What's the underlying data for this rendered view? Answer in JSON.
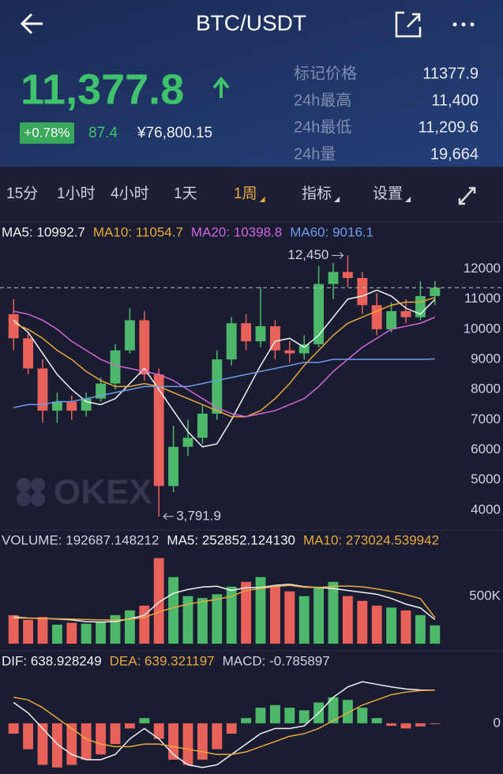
{
  "header": {
    "title": "BTC/USDT",
    "price": "11,377.8",
    "change": "+0.78%",
    "change_abs": "87.4",
    "price_cny": "¥76,800.15",
    "stats": [
      {
        "label": "标记价格",
        "value": "11377.9"
      },
      {
        "label": "24h最高",
        "value": "11,400"
      },
      {
        "label": "24h最低",
        "value": "11,209.6"
      },
      {
        "label": "24h量",
        "value": "19,664"
      }
    ]
  },
  "tabs": [
    "15分",
    "1小时",
    "4小时",
    "1天",
    "1周",
    "指标",
    "设置"
  ],
  "watermark": "OKEX",
  "chart_data": [
    {
      "type": "candlestick",
      "up_color": "#4cb86a",
      "down_color": "#e8615b",
      "open": [
        10500,
        9700,
        8700,
        7300,
        7600,
        7300,
        7700,
        8200,
        9300,
        10300,
        8500,
        4800,
        6100,
        6400,
        7200,
        9000,
        10200,
        9600,
        10100,
        9300,
        9200,
        9500,
        11500,
        11900,
        11700,
        10800,
        10000,
        10600,
        10400,
        11100
      ],
      "high": [
        11000,
        9900,
        9000,
        7900,
        7800,
        7900,
        8400,
        9500,
        10700,
        10600,
        8700,
        6800,
        7000,
        7500,
        9300,
        10400,
        10500,
        11400,
        10300,
        9600,
        9800,
        12100,
        12200,
        12450,
        11900,
        11200,
        10900,
        11000,
        11600,
        11600
      ],
      "low": [
        9300,
        8500,
        6900,
        6900,
        7000,
        7100,
        7600,
        8000,
        9200,
        8300,
        3791.9,
        4600,
        5800,
        6200,
        7000,
        8800,
        9300,
        9400,
        9000,
        8900,
        9000,
        9400,
        11000,
        11400,
        10500,
        9800,
        9900,
        10200,
        10300,
        10800
      ],
      "close": [
        9700,
        8700,
        7300,
        7600,
        7300,
        7700,
        8200,
        9300,
        10300,
        8500,
        4800,
        6100,
        6400,
        7200,
        9000,
        10200,
        9600,
        10100,
        9300,
        9200,
        9500,
        11500,
        11900,
        11700,
        10800,
        10000,
        10600,
        10400,
        11100,
        11377.8
      ],
      "series": [
        {
          "name": "MA5: 10992.7",
          "color": "#f2f2f2",
          "values": [
            10300,
            9900,
            9200,
            8500,
            8000,
            7600,
            7500,
            7700,
            8200,
            8700,
            8000,
            7300,
            6600,
            6100,
            6200,
            7000,
            7900,
            8800,
            9600,
            9700,
            9400,
            9800,
            10400,
            11000,
            11100,
            11300,
            11100,
            10700,
            10500,
            10992.7
          ]
        },
        {
          "name": "MA10: 11054.7",
          "color": "#e9a83a",
          "values": [
            10200,
            10000,
            9700,
            9300,
            9000,
            8600,
            8300,
            8100,
            8100,
            8200,
            8100,
            7900,
            7700,
            7500,
            7300,
            7100,
            7100,
            7300,
            7700,
            8200,
            8800,
            9300,
            9800,
            10200,
            10400,
            10600,
            10800,
            10900,
            10900,
            11054.7
          ]
        },
        {
          "name": "MA20: 10398.8",
          "color": "#d066d8",
          "values": [
            10600,
            10500,
            10300,
            10000,
            9600,
            9300,
            9000,
            8800,
            8700,
            8600,
            8500,
            8300,
            8000,
            7700,
            7400,
            7200,
            7100,
            7200,
            7300,
            7500,
            7700,
            8100,
            8600,
            9000,
            9400,
            9700,
            10000,
            10100,
            10200,
            10398.8
          ]
        },
        {
          "name": "MA60: 9016.1",
          "color": "#6f9ce8",
          "values": [
            7400,
            7500,
            7500,
            7600,
            7600,
            7700,
            7800,
            7900,
            8000,
            8100,
            8100,
            8100,
            8100,
            8200,
            8300,
            8400,
            8500,
            8600,
            8700,
            8800,
            8900,
            8900,
            9000,
            9000,
            9000,
            9000,
            9000,
            9000,
            9000,
            9016.1
          ]
        }
      ],
      "annotations": [
        {
          "value": 12450,
          "label": "12,450"
        },
        {
          "value": 3791.9,
          "label": "3,791.9"
        }
      ],
      "ylim": [
        3500,
        12800
      ],
      "yticks": [
        4000,
        5000,
        6000,
        7000,
        8000,
        9000,
        10000,
        11000,
        12000
      ]
    },
    {
      "type": "volume",
      "series": [
        {
          "name": "VOLUME: 192687.148212",
          "color": "#cfd3e0",
          "values": [
            300000,
            250000,
            280000,
            200000,
            220000,
            210000,
            230000,
            300000,
            350000,
            400000,
            900000,
            700000,
            500000,
            480000,
            520000,
            600000,
            650000,
            700000,
            600000,
            550000,
            500000,
            600000,
            650000,
            500000,
            450000,
            400000,
            380000,
            350000,
            300000,
            192687.148212
          ]
        },
        {
          "name": "MA5: 252852.124130",
          "color": "#f2f2f2",
          "values": [
            280000,
            270000,
            265000,
            260000,
            250000,
            232000,
            228000,
            232000,
            262000,
            298000,
            436000,
            530000,
            570000,
            596000,
            604000,
            560000,
            590000,
            590000,
            614000,
            624000,
            600000,
            590000,
            580000,
            560000,
            540000,
            520000,
            476000,
            416000,
            376000,
            252852.12413
          ]
        },
        {
          "name": "MA10: 273024.539942",
          "color": "#e9a83a",
          "values": [
            270000,
            268000,
            266000,
            262000,
            258000,
            254000,
            250000,
            248000,
            256000,
            276000,
            334000,
            380000,
            414000,
            442000,
            466000,
            498000,
            560000,
            580000,
            600000,
            614000,
            594000,
            590000,
            604000,
            606000,
            598000,
            576000,
            550000,
            516000,
            474000,
            273024.539942
          ]
        }
      ],
      "ylim": [
        0,
        980000
      ],
      "yticks": [
        {
          "value": 500000,
          "label": "500K"
        }
      ]
    },
    {
      "type": "macd",
      "series": [
        {
          "name": "DIF: 638.928249",
          "color": "#f2f2f2",
          "values": [
            400,
            200,
            -100,
            -400,
            -600,
            -700,
            -700,
            -600,
            -300,
            -100,
            -300,
            -600,
            -800,
            -850,
            -800,
            -600,
            -400,
            -200,
            -100,
            -100,
            -50,
            200,
            500,
            700,
            800,
            750,
            700,
            660,
            640,
            638.928249
          ]
        },
        {
          "name": "DEA: 639.321197",
          "color": "#e9a83a",
          "values": [
            500,
            450,
            300,
            100,
            -100,
            -300,
            -400,
            -450,
            -450,
            -400,
            -400,
            -450,
            -500,
            -550,
            -600,
            -600,
            -550,
            -450,
            -350,
            -250,
            -200,
            -100,
            50,
            200,
            350,
            450,
            550,
            600,
            630,
            639.321197
          ]
        },
        {
          "name": "MACD: -0.785897",
          "color": "#cfd3e0",
          "values": [
            -200,
            -500,
            -800,
            -850,
            -800,
            -700,
            -600,
            -400,
            -100,
            100,
            -300,
            -700,
            -800,
            -700,
            -500,
            -200,
            100,
            300,
            350,
            300,
            250,
            400,
            500,
            450,
            300,
            100,
            -50,
            -100,
            -60,
            -0.785897
          ]
        }
      ],
      "ylim": [
        -900,
        1000
      ],
      "yticks": [
        0
      ]
    }
  ]
}
